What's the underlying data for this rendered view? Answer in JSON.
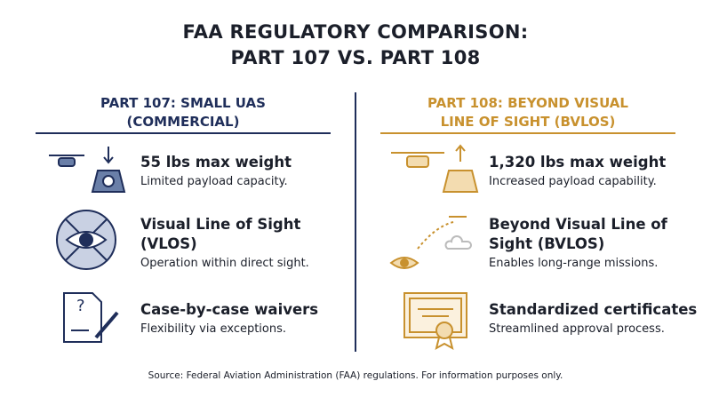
{
  "header": {
    "title_lines": [
      "FAA REGULATORY COMPARISON:",
      "PART 107 VS. PART 108"
    ]
  },
  "columns": [
    {
      "heading_lines": [
        "PART 107: SMALL UAS",
        "(COMMERCIAL)"
      ],
      "items": [
        {
          "title_lines": [
            "55 lbs max weight"
          ],
          "description": "Limited payload capacity."
        },
        {
          "title_lines": [
            "Visual Line of Sight",
            "(VLOS)"
          ],
          "description": "Operation within direct sight."
        },
        {
          "title_lines": [
            "Case-by-case waivers"
          ],
          "description": "Flexibility via exceptions."
        }
      ]
    },
    {
      "heading_lines": [
        "PART 108: BEYOND VISUAL",
        "LINE OF SIGHT (BVLOS)"
      ],
      "items": [
        {
          "title_lines": [
            "1,320 lbs max weight"
          ],
          "description": "Increased payload capability."
        },
        {
          "title_lines": [
            "Beyond Visual Line of",
            "Sight (BVLOS)"
          ],
          "description": "Enables long-range missions."
        },
        {
          "title_lines": [
            "Standardized certificates"
          ],
          "description": "Streamlined approval process."
        }
      ]
    }
  ],
  "footer": {
    "source": "Source: Federal Aviation Administration (FAA) regulations. For information purposes only."
  }
}
